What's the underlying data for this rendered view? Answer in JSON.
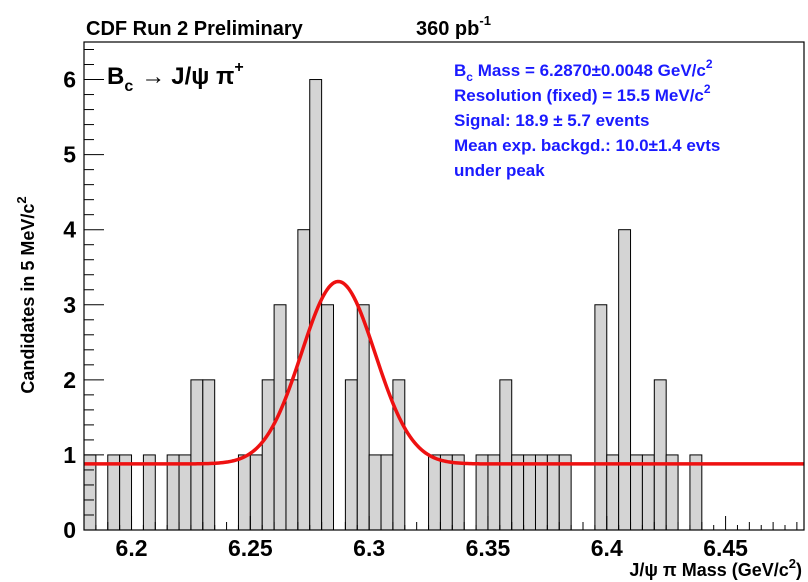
{
  "header": {
    "experiment": "CDF Run 2 Preliminary",
    "luminosity": "360 pb",
    "luminosity_exp": "-1"
  },
  "process_label": {
    "b": "B",
    "c": "c",
    "arrow": "→",
    "rest": "J/ψ π",
    "sup": "+"
  },
  "stats": {
    "line1_a": "B",
    "line1_sub": "c",
    "line1_b": " Mass = 6.2870±0.0048 GeV/c",
    "line1_sup": "2",
    "line2_a": "Resolution (fixed) = 15.5 MeV/c",
    "line2_sup": "2",
    "line3": "Signal: 18.9 ± 5.7 events",
    "line4": "Mean exp. backgd.: 10.0±1.4 evts",
    "line5": "under peak"
  },
  "axes": {
    "y_title": "Candidates in 5 MeV/c",
    "y_title_sup": "2",
    "x_title": "J/ψ π Mass (GeV/c",
    "x_title_sup": "2",
    "x_title_end": ")"
  },
  "colors": {
    "hist_fill": "#d4d4d4",
    "hist_line": "#000000",
    "fit_line": "#ee1111",
    "stats_text": "#1a1aff"
  },
  "chart_data": {
    "type": "histogram",
    "bin_width": 0.005,
    "bin_edges_start": 6.18,
    "counts": [
      1,
      0,
      1,
      1,
      0,
      1,
      0,
      1,
      1,
      2,
      2,
      0,
      0,
      1,
      1,
      2,
      3,
      2,
      4,
      6,
      3,
      0,
      2,
      3,
      1,
      1,
      2,
      0,
      0,
      1,
      1,
      1,
      0,
      1,
      1,
      2,
      1,
      1,
      1,
      1,
      1,
      0,
      0,
      3,
      1,
      4,
      1,
      1,
      2,
      1,
      0,
      1
    ],
    "xlim": [
      6.18,
      6.483
    ],
    "ylim": [
      0,
      6.5
    ],
    "x_ticks": [
      6.2,
      6.25,
      6.3,
      6.35,
      6.4,
      6.45
    ],
    "x_tick_labels": [
      "6.2",
      "6.25",
      "6.3",
      "6.35",
      "6.4",
      "6.45"
    ],
    "y_ticks": [
      0,
      1,
      2,
      3,
      4,
      5,
      6
    ],
    "y_tick_labels": [
      "0",
      "1",
      "2",
      "3",
      "4",
      "5",
      "6"
    ],
    "fit": {
      "type": "gaussian_plus_flat",
      "mean": 6.287,
      "sigma": 0.0155,
      "amplitude": 2.43,
      "background": 0.88
    }
  }
}
